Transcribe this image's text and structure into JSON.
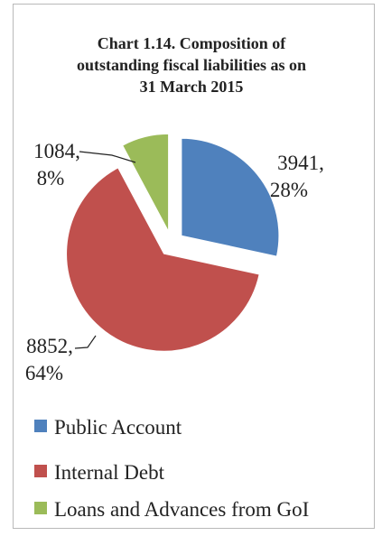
{
  "chart_data": {
    "type": "pie",
    "title": "Chart 1.14.  Composition of outstanding fiscal liabilities as on 31 March 2015",
    "title_lines": [
      "Chart 1.14.  Composition of",
      "outstanding fiscal liabilities as on",
      "31 March 2015"
    ],
    "series": [
      {
        "name": "Public Account",
        "value": 3941,
        "percent": 28,
        "color": "#4f81bd",
        "label_line1": "3941,",
        "label_line2": "28%"
      },
      {
        "name": "Internal Debt",
        "value": 8852,
        "percent": 64,
        "color": "#c0504d",
        "label_line1": "8852,",
        "label_line2": "64%"
      },
      {
        "name": "Loans and Advances from GoI",
        "value": 1084,
        "percent": 8,
        "color": "#9bbb59",
        "label_line1": "1084,",
        "label_line2": "8%"
      }
    ],
    "legend_position": "bottom",
    "exploded": true
  }
}
